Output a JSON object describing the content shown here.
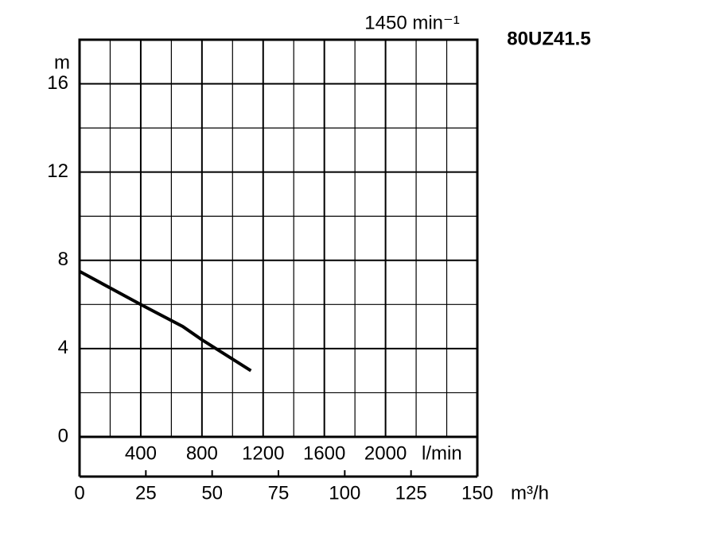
{
  "chart_data": {
    "type": "line",
    "title": "80UZ41.5",
    "subtitle": "1450 min⁻¹",
    "y_label": "m",
    "x_label": "l/min",
    "x2_label": "m³/h",
    "x": [
      0,
      400,
      675,
      800,
      1120
    ],
    "series": [
      {
        "name": "80UZ41.5",
        "color": "#000000",
        "values": [
          7.5,
          6.0,
          5.0,
          4.4,
          3.0
        ]
      }
    ],
    "xlim": [
      0,
      2600
    ],
    "xticks": [
      400,
      800,
      1200,
      1600,
      2000
    ],
    "xminor": [
      200,
      600,
      1000,
      1400,
      1800,
      2200,
      2400
    ],
    "x2lim": [
      0,
      150
    ],
    "x2ticks": [
      0,
      25,
      50,
      75,
      100,
      125,
      150
    ],
    "ylim": [
      0,
      18
    ],
    "yticks": [
      0,
      4,
      8,
      12,
      16
    ],
    "yminor": [
      2,
      6,
      10,
      14
    ],
    "grid": true
  }
}
